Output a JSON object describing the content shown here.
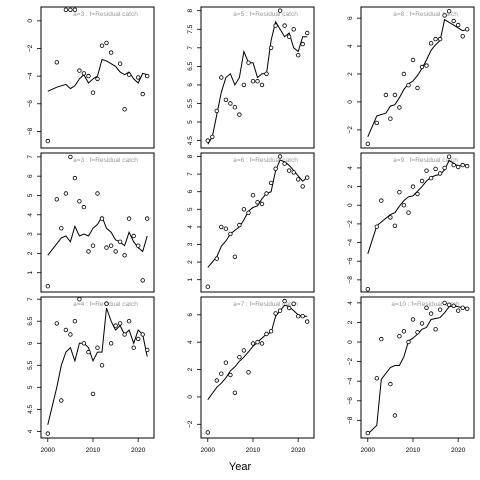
{
  "xlabel": "Year",
  "chart_data": [
    {
      "type": "scatter",
      "title": "a=3 : f=Residual catch",
      "x": [
        2000,
        2002,
        2004,
        2005,
        2006,
        2007,
        2008,
        2009,
        2010,
        2011,
        2012,
        2013,
        2014,
        2015,
        2016,
        2017,
        2018,
        2019,
        2020,
        2021,
        2022
      ],
      "points": [
        -8.7,
        -3.0,
        0.8,
        0.8,
        0.8,
        -3.6,
        -3.8,
        -4.0,
        -5.2,
        -4.2,
        -1.8,
        -1.6,
        -2.3,
        null,
        -3.1,
        -6.4,
        -3.9,
        null,
        -4.1,
        -5.3,
        -4.0
      ],
      "fit": [
        -5.1,
        -4.8,
        -4.6,
        -4.9,
        -4.7,
        -4.2,
        -3.9,
        -4.5,
        -4.2,
        -4.0,
        -2.8,
        -2.9,
        -3.1,
        -3.3,
        -3.7,
        -3.9,
        -3.7,
        -4.2,
        -4.5,
        -3.8,
        -3.9
      ],
      "ylim": [
        -9.2,
        1.0
      ],
      "yticks": [
        0,
        -2,
        -4,
        -6,
        -8
      ],
      "xticks": [],
      "series": [
        {
          "name": "points"
        },
        {
          "name": "fit"
        }
      ]
    },
    {
      "type": "scatter",
      "title": "a=5 : f=Residual catch",
      "x": [
        2000,
        2001,
        2002,
        2003,
        2004,
        2005,
        2006,
        2007,
        2008,
        2009,
        2010,
        2011,
        2012,
        2013,
        2014,
        2015,
        2016,
        2017,
        2018,
        2019,
        2020,
        2021,
        2022
      ],
      "points": [
        4.5,
        4.6,
        5.3,
        6.2,
        5.6,
        5.5,
        5.4,
        5.2,
        6.0,
        6.6,
        6.1,
        6.1,
        6.0,
        6.3,
        7.0,
        7.6,
        8.0,
        7.6,
        7.3,
        7.5,
        6.8,
        7.1,
        7.4
      ],
      "fit": [
        4.4,
        4.6,
        5.2,
        5.8,
        6.2,
        6.3,
        6.0,
        6.2,
        6.9,
        6.6,
        6.6,
        6.2,
        6.3,
        6.3,
        7.2,
        7.7,
        7.5,
        7.3,
        7.4,
        7.0,
        6.9,
        7.3,
        7.3
      ],
      "ylim": [
        4.3,
        8.1
      ],
      "yticks": [
        4.5,
        5.0,
        5.5,
        6.0,
        6.5,
        7.0,
        7.5,
        8.0
      ],
      "xticks": []
    },
    {
      "type": "scatter",
      "title": "a=8 : f=Residual catch",
      "x": [
        2000,
        2002,
        2004,
        2005,
        2006,
        2007,
        2008,
        2009,
        2010,
        2011,
        2012,
        2013,
        2014,
        2015,
        2016,
        2017,
        2018,
        2019,
        2020,
        2021,
        2022
      ],
      "points": [
        -3.0,
        -1.5,
        0.5,
        -1.2,
        0.5,
        -0.4,
        2.0,
        1.2,
        3.0,
        1.0,
        2.5,
        2.6,
        4.2,
        4.5,
        4.5,
        6.2,
        6.5,
        5.8,
        5.5,
        4.7,
        5.2
      ],
      "fit": [
        -2.5,
        -1.0,
        -0.8,
        -0.3,
        -0.2,
        0.3,
        0.9,
        1.3,
        1.5,
        1.9,
        2.4,
        3.0,
        3.7,
        4.1,
        4.4,
        5.9,
        5.7,
        5.5,
        5.3,
        5.1,
        5.2
      ],
      "ylim": [
        -3.3,
        6.8
      ],
      "yticks": [
        -2,
        0,
        2,
        4,
        6
      ],
      "xticks": []
    },
    {
      "type": "scatter",
      "title": "a=3 : f=Residual catch",
      "x": [
        2000,
        2002,
        2003,
        2004,
        2005,
        2006,
        2007,
        2008,
        2009,
        2010,
        2011,
        2012,
        2013,
        2014,
        2015,
        2016,
        2017,
        2018,
        2019,
        2020,
        2021,
        2022
      ],
      "points": [
        0.3,
        4.8,
        3.3,
        5.1,
        7.0,
        5.9,
        4.7,
        4.4,
        2.1,
        2.4,
        5.1,
        3.8,
        2.3,
        2.4,
        2.1,
        2.6,
        1.9,
        3.8,
        2.9,
        2.4,
        0.6,
        3.8
      ],
      "fit": [
        1.9,
        2.5,
        2.8,
        2.9,
        2.6,
        3.4,
        2.9,
        3.0,
        2.9,
        3.3,
        3.5,
        3.9,
        3.3,
        3.1,
        2.7,
        2.6,
        2.4,
        3.1,
        2.6,
        2.3,
        2.1,
        2.9
      ],
      "ylim": [
        0.0,
        7.2
      ],
      "yticks": [
        1,
        2,
        3,
        4,
        5,
        6,
        7
      ],
      "xticks": []
    },
    {
      "type": "scatter",
      "title": "a=6 : f=Residual catch",
      "x": [
        2000,
        2002,
        2003,
        2004,
        2005,
        2006,
        2007,
        2008,
        2009,
        2010,
        2011,
        2012,
        2013,
        2014,
        2015,
        2016,
        2017,
        2018,
        2019,
        2020,
        2021,
        2022
      ],
      "points": [
        0.6,
        2.2,
        4.0,
        3.9,
        3.6,
        2.3,
        4.1,
        5.0,
        4.8,
        5.8,
        5.4,
        5.3,
        5.9,
        6.5,
        7.3,
        8.0,
        7.6,
        7.2,
        7.1,
        6.7,
        6.3,
        6.8
      ],
      "fit": [
        1.7,
        2.3,
        2.9,
        3.2,
        3.6,
        3.8,
        4.0,
        4.4,
        4.9,
        5.1,
        5.2,
        5.6,
        5.9,
        6.0,
        7.2,
        7.8,
        7.7,
        7.5,
        7.2,
        6.9,
        6.6,
        6.8
      ],
      "ylim": [
        0.3,
        8.2
      ],
      "yticks": [
        1,
        2,
        3,
        4,
        5,
        6,
        7,
        8
      ],
      "xticks": []
    },
    {
      "type": "scatter",
      "title": "a=9 : f=Residual catch",
      "x": [
        2000,
        2002,
        2003,
        2005,
        2006,
        2007,
        2008,
        2009,
        2010,
        2011,
        2012,
        2013,
        2014,
        2015,
        2016,
        2017,
        2018,
        2019,
        2020,
        2021,
        2022
      ],
      "points": [
        -9.0,
        -2.3,
        0.5,
        -1.3,
        -2.2,
        1.4,
        0.0,
        -0.8,
        2.0,
        1.2,
        2.6,
        3.7,
        2.9,
        3.9,
        3.4,
        4.0,
        5.2,
        4.3,
        4.1,
        4.3,
        4.2
      ],
      "fit": [
        -5.2,
        -2.2,
        -1.8,
        -1.0,
        -0.8,
        -0.1,
        0.5,
        0.9,
        1.0,
        1.5,
        2.0,
        2.6,
        3.0,
        3.2,
        3.3,
        3.8,
        4.8,
        4.5,
        4.2,
        4.3,
        4.3
      ],
      "ylim": [
        -9.3,
        5.6
      ],
      "yticks": [
        -8,
        -6,
        -4,
        -2,
        0,
        2,
        4
      ],
      "xticks": []
    },
    {
      "type": "scatter",
      "title": "a=4 : f=Residual catch",
      "x": [
        2000,
        2002,
        2003,
        2004,
        2005,
        2006,
        2007,
        2008,
        2009,
        2010,
        2011,
        2012,
        2013,
        2014,
        2015,
        2016,
        2017,
        2018,
        2019,
        2020,
        2021,
        2022
      ],
      "points": [
        3.95,
        6.45,
        4.7,
        6.3,
        6.2,
        6.5,
        7.0,
        6.0,
        5.8,
        4.85,
        5.9,
        5.5,
        6.9,
        6.0,
        6.4,
        6.45,
        6.2,
        6.5,
        5.9,
        6.1,
        6.2,
        5.85
      ],
      "fit": [
        4.15,
        5.0,
        5.5,
        5.8,
        5.9,
        5.6,
        6.0,
        6.0,
        5.9,
        5.6,
        5.8,
        5.8,
        6.8,
        6.5,
        6.3,
        6.4,
        6.2,
        6.3,
        6.0,
        6.3,
        6.2,
        5.7
      ],
      "ylim": [
        3.85,
        7.05
      ],
      "yticks": [
        4.0,
        4.5,
        5.0,
        5.5,
        6.0,
        6.5,
        7.0
      ],
      "xticks": [
        2000,
        2010,
        2020
      ]
    },
    {
      "type": "scatter",
      "title": "a=7 : f=Residual catch",
      "x": [
        2000,
        2002,
        2003,
        2004,
        2005,
        2006,
        2007,
        2008,
        2009,
        2010,
        2011,
        2012,
        2013,
        2014,
        2015,
        2016,
        2017,
        2018,
        2019,
        2020,
        2021,
        2022
      ],
      "points": [
        -2.6,
        1.2,
        1.7,
        2.5,
        1.6,
        0.3,
        2.9,
        3.4,
        1.8,
        3.9,
        4.0,
        3.9,
        4.6,
        4.8,
        6.1,
        6.3,
        7.0,
        6.5,
        6.8,
        5.9,
        5.9,
        5.5
      ],
      "fit": [
        -0.2,
        0.7,
        1.0,
        1.4,
        1.9,
        2.2,
        2.6,
        2.9,
        3.3,
        3.7,
        4.0,
        4.3,
        4.6,
        4.7,
        5.9,
        6.3,
        6.7,
        6.6,
        6.3,
        6.0,
        5.9,
        5.9
      ],
      "ylim": [
        -3.0,
        7.3
      ],
      "yticks": [
        -2,
        0,
        2,
        4,
        6
      ],
      "xticks": [
        2000,
        2010,
        2020
      ]
    },
    {
      "type": "scatter",
      "title": "a=10 : f=Residual catch",
      "x": [
        2000,
        2002,
        2003,
        2005,
        2006,
        2007,
        2008,
        2009,
        2010,
        2011,
        2012,
        2013,
        2014,
        2015,
        2016,
        2017,
        2018,
        2019,
        2020,
        2021,
        2022
      ],
      "points": [
        -9.3,
        -3.7,
        0.3,
        -4.3,
        -7.5,
        0.6,
        1.1,
        0.0,
        2.3,
        1.0,
        1.9,
        3.5,
        2.9,
        1.3,
        3.3,
        4.0,
        3.8,
        3.7,
        3.2,
        3.5,
        3.4
      ],
      "fit": [
        -9.4,
        -8.5,
        -3.8,
        -2.6,
        -2.4,
        -2.4,
        -1.5,
        0.1,
        0.4,
        0.8,
        1.3,
        1.5,
        2.3,
        2.4,
        2.5,
        3.0,
        3.6,
        3.7,
        3.6,
        3.5,
        3.5
      ],
      "ylim": [
        -9.8,
        4.6
      ],
      "yticks": [
        -8,
        -6,
        -4,
        -2,
        0,
        2,
        4
      ],
      "xticks": [
        2000,
        2010,
        2020
      ]
    }
  ]
}
